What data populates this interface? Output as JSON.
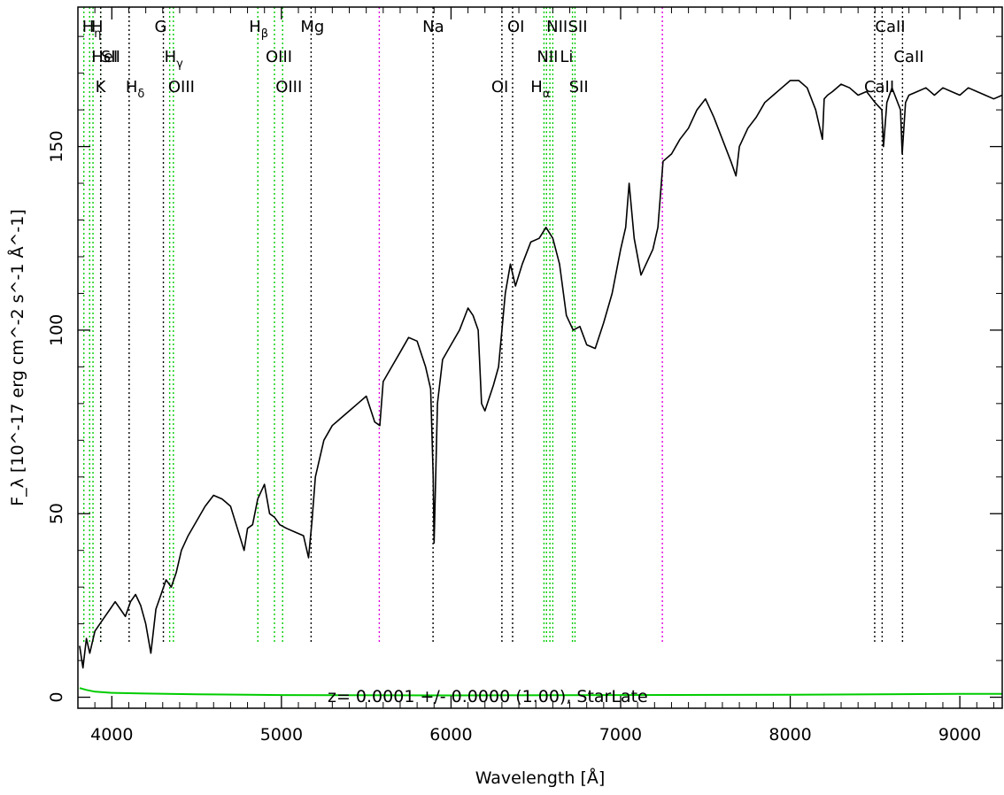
{
  "chart_data": {
    "type": "line",
    "xlabel": "Wavelength [Å]",
    "ylabel": "F_λ [10^-17 erg cm^-2 s^-1 Å^-1]",
    "xlim": [
      3800,
      9250
    ],
    "ylim": [
      -3,
      188
    ],
    "x_ticks": [
      4000,
      5000,
      6000,
      7000,
      8000,
      9000
    ],
    "y_ticks": [
      0,
      50,
      100,
      150
    ],
    "annotation": "z= 0.0001 +/- 0.0000 (1.00), StarLate",
    "colors": {
      "spectrum": "#000000",
      "error": "#00cc00",
      "emission": "#00cc00",
      "absorption": "#000000",
      "sky": "#e000e0"
    },
    "spectrum": {
      "name": "flux",
      "x": [
        3810,
        3830,
        3850,
        3870,
        3900,
        3930,
        3960,
        3990,
        4020,
        4050,
        4080,
        4110,
        4140,
        4170,
        4200,
        4230,
        4260,
        4290,
        4320,
        4350,
        4380,
        4410,
        4450,
        4500,
        4550,
        4600,
        4650,
        4700,
        4740,
        4780,
        4800,
        4830,
        4860,
        4900,
        4930,
        4960,
        4990,
        5030,
        5080,
        5130,
        5160,
        5180,
        5200,
        5250,
        5300,
        5350,
        5400,
        5450,
        5500,
        5550,
        5580,
        5600,
        5650,
        5700,
        5750,
        5800,
        5850,
        5880,
        5895,
        5900,
        5920,
        5950,
        6000,
        6050,
        6100,
        6130,
        6160,
        6180,
        6200,
        6250,
        6280,
        6300,
        6320,
        6350,
        6380,
        6420,
        6470,
        6520,
        6560,
        6600,
        6640,
        6680,
        6720,
        6760,
        6800,
        6850,
        6900,
        6950,
        7000,
        7030,
        7050,
        7080,
        7120,
        7150,
        7190,
        7220,
        7250,
        7300,
        7350,
        7400,
        7450,
        7500,
        7550,
        7600,
        7650,
        7680,
        7700,
        7750,
        7800,
        7850,
        7900,
        7950,
        8000,
        8050,
        8100,
        8150,
        8190,
        8200,
        8220,
        8250,
        8300,
        8350,
        8400,
        8450,
        8500,
        8540,
        8550,
        8570,
        8600,
        8650,
        8660,
        8680,
        8700,
        8750,
        8800,
        8850,
        8900,
        8950,
        9000,
        9050,
        9100,
        9150,
        9200,
        9250
      ],
      "y": [
        14,
        8,
        16,
        12,
        18,
        20,
        22,
        24,
        26,
        24,
        22,
        26,
        28,
        25,
        20,
        12,
        24,
        28,
        32,
        30,
        34,
        40,
        44,
        48,
        52,
        55,
        54,
        52,
        46,
        40,
        46,
        47,
        54,
        58,
        50,
        49,
        47,
        46,
        45,
        44,
        38,
        48,
        60,
        70,
        74,
        76,
        78,
        80,
        82,
        75,
        74,
        86,
        90,
        94,
        98,
        97,
        90,
        84,
        60,
        42,
        80,
        92,
        96,
        100,
        106,
        104,
        100,
        80,
        78,
        85,
        90,
        100,
        110,
        118,
        112,
        118,
        124,
        125,
        128,
        125,
        118,
        104,
        100,
        101,
        96,
        95,
        102,
        110,
        122,
        128,
        140,
        125,
        115,
        118,
        122,
        128,
        146,
        148,
        152,
        155,
        160,
        163,
        158,
        152,
        146,
        142,
        150,
        155,
        158,
        162,
        164,
        166,
        168,
        168,
        166,
        160,
        152,
        163,
        164,
        165,
        167,
        166,
        164,
        165,
        162,
        160,
        150,
        162,
        166,
        160,
        148,
        162,
        164,
        165,
        166,
        164,
        166,
        165,
        164,
        166,
        165,
        164,
        163,
        164
      ]
    },
    "error": {
      "name": "error",
      "x": [
        3810,
        3850,
        3900,
        4000,
        4200,
        4500,
        5000,
        6000,
        7000,
        8000,
        9000,
        9250
      ],
      "y": [
        2.5,
        2.0,
        1.5,
        1.2,
        1.0,
        0.8,
        0.6,
        0.5,
        0.6,
        0.7,
        0.9,
        0.9
      ]
    },
    "line_markers": [
      {
        "label": "H_η",
        "x": 3835,
        "kind": "emission"
      },
      {
        "label": "H",
        "x": 3889,
        "kind": "emission"
      },
      {
        "label": "HeI",
        "x": 3869,
        "kind": "emission"
      },
      {
        "label": "SII",
        "x": 3935,
        "kind": "emission"
      },
      {
        "label": "K",
        "x": 3934,
        "kind": "absorption"
      },
      {
        "label": "H_δ",
        "x": 4102,
        "kind": "absorption"
      },
      {
        "label": "G",
        "x": 4304,
        "kind": "absorption"
      },
      {
        "label": "H_γ",
        "x": 4341,
        "kind": "emission"
      },
      {
        "label": "OIII",
        "x": 4363,
        "kind": "emission"
      },
      {
        "label": "H_β",
        "x": 4861,
        "kind": "emission"
      },
      {
        "label": "OIII",
        "x": 4959,
        "kind": "emission"
      },
      {
        "label": "OIII",
        "x": 5007,
        "kind": "emission"
      },
      {
        "label": "Mg",
        "x": 5175,
        "kind": "absorption"
      },
      {
        "label": "Na",
        "x": 5894,
        "kind": "absorption"
      },
      {
        "label": "OI",
        "x": 6300,
        "kind": "absorption"
      },
      {
        "label": "OI",
        "x": 6363,
        "kind": "absorption"
      },
      {
        "label": "NII",
        "x": 6548,
        "kind": "emission"
      },
      {
        "label": "NII",
        "x": 6583,
        "kind": "emission"
      },
      {
        "label": "Li",
        "x": 6600,
        "kind": "emission"
      },
      {
        "label": "H_α",
        "x": 6563,
        "kind": "emission"
      },
      {
        "label": "SII",
        "x": 6716,
        "kind": "emission"
      },
      {
        "label": "SII",
        "x": 6731,
        "kind": "emission"
      },
      {
        "label": "CaII",
        "x": 8498,
        "kind": "absorption"
      },
      {
        "label": "CaII",
        "x": 8542,
        "kind": "absorption"
      },
      {
        "label": "CaII",
        "x": 8662,
        "kind": "absorption"
      }
    ],
    "sky_lines": [
      5577,
      7246
    ],
    "grid": false,
    "legend": "none"
  }
}
